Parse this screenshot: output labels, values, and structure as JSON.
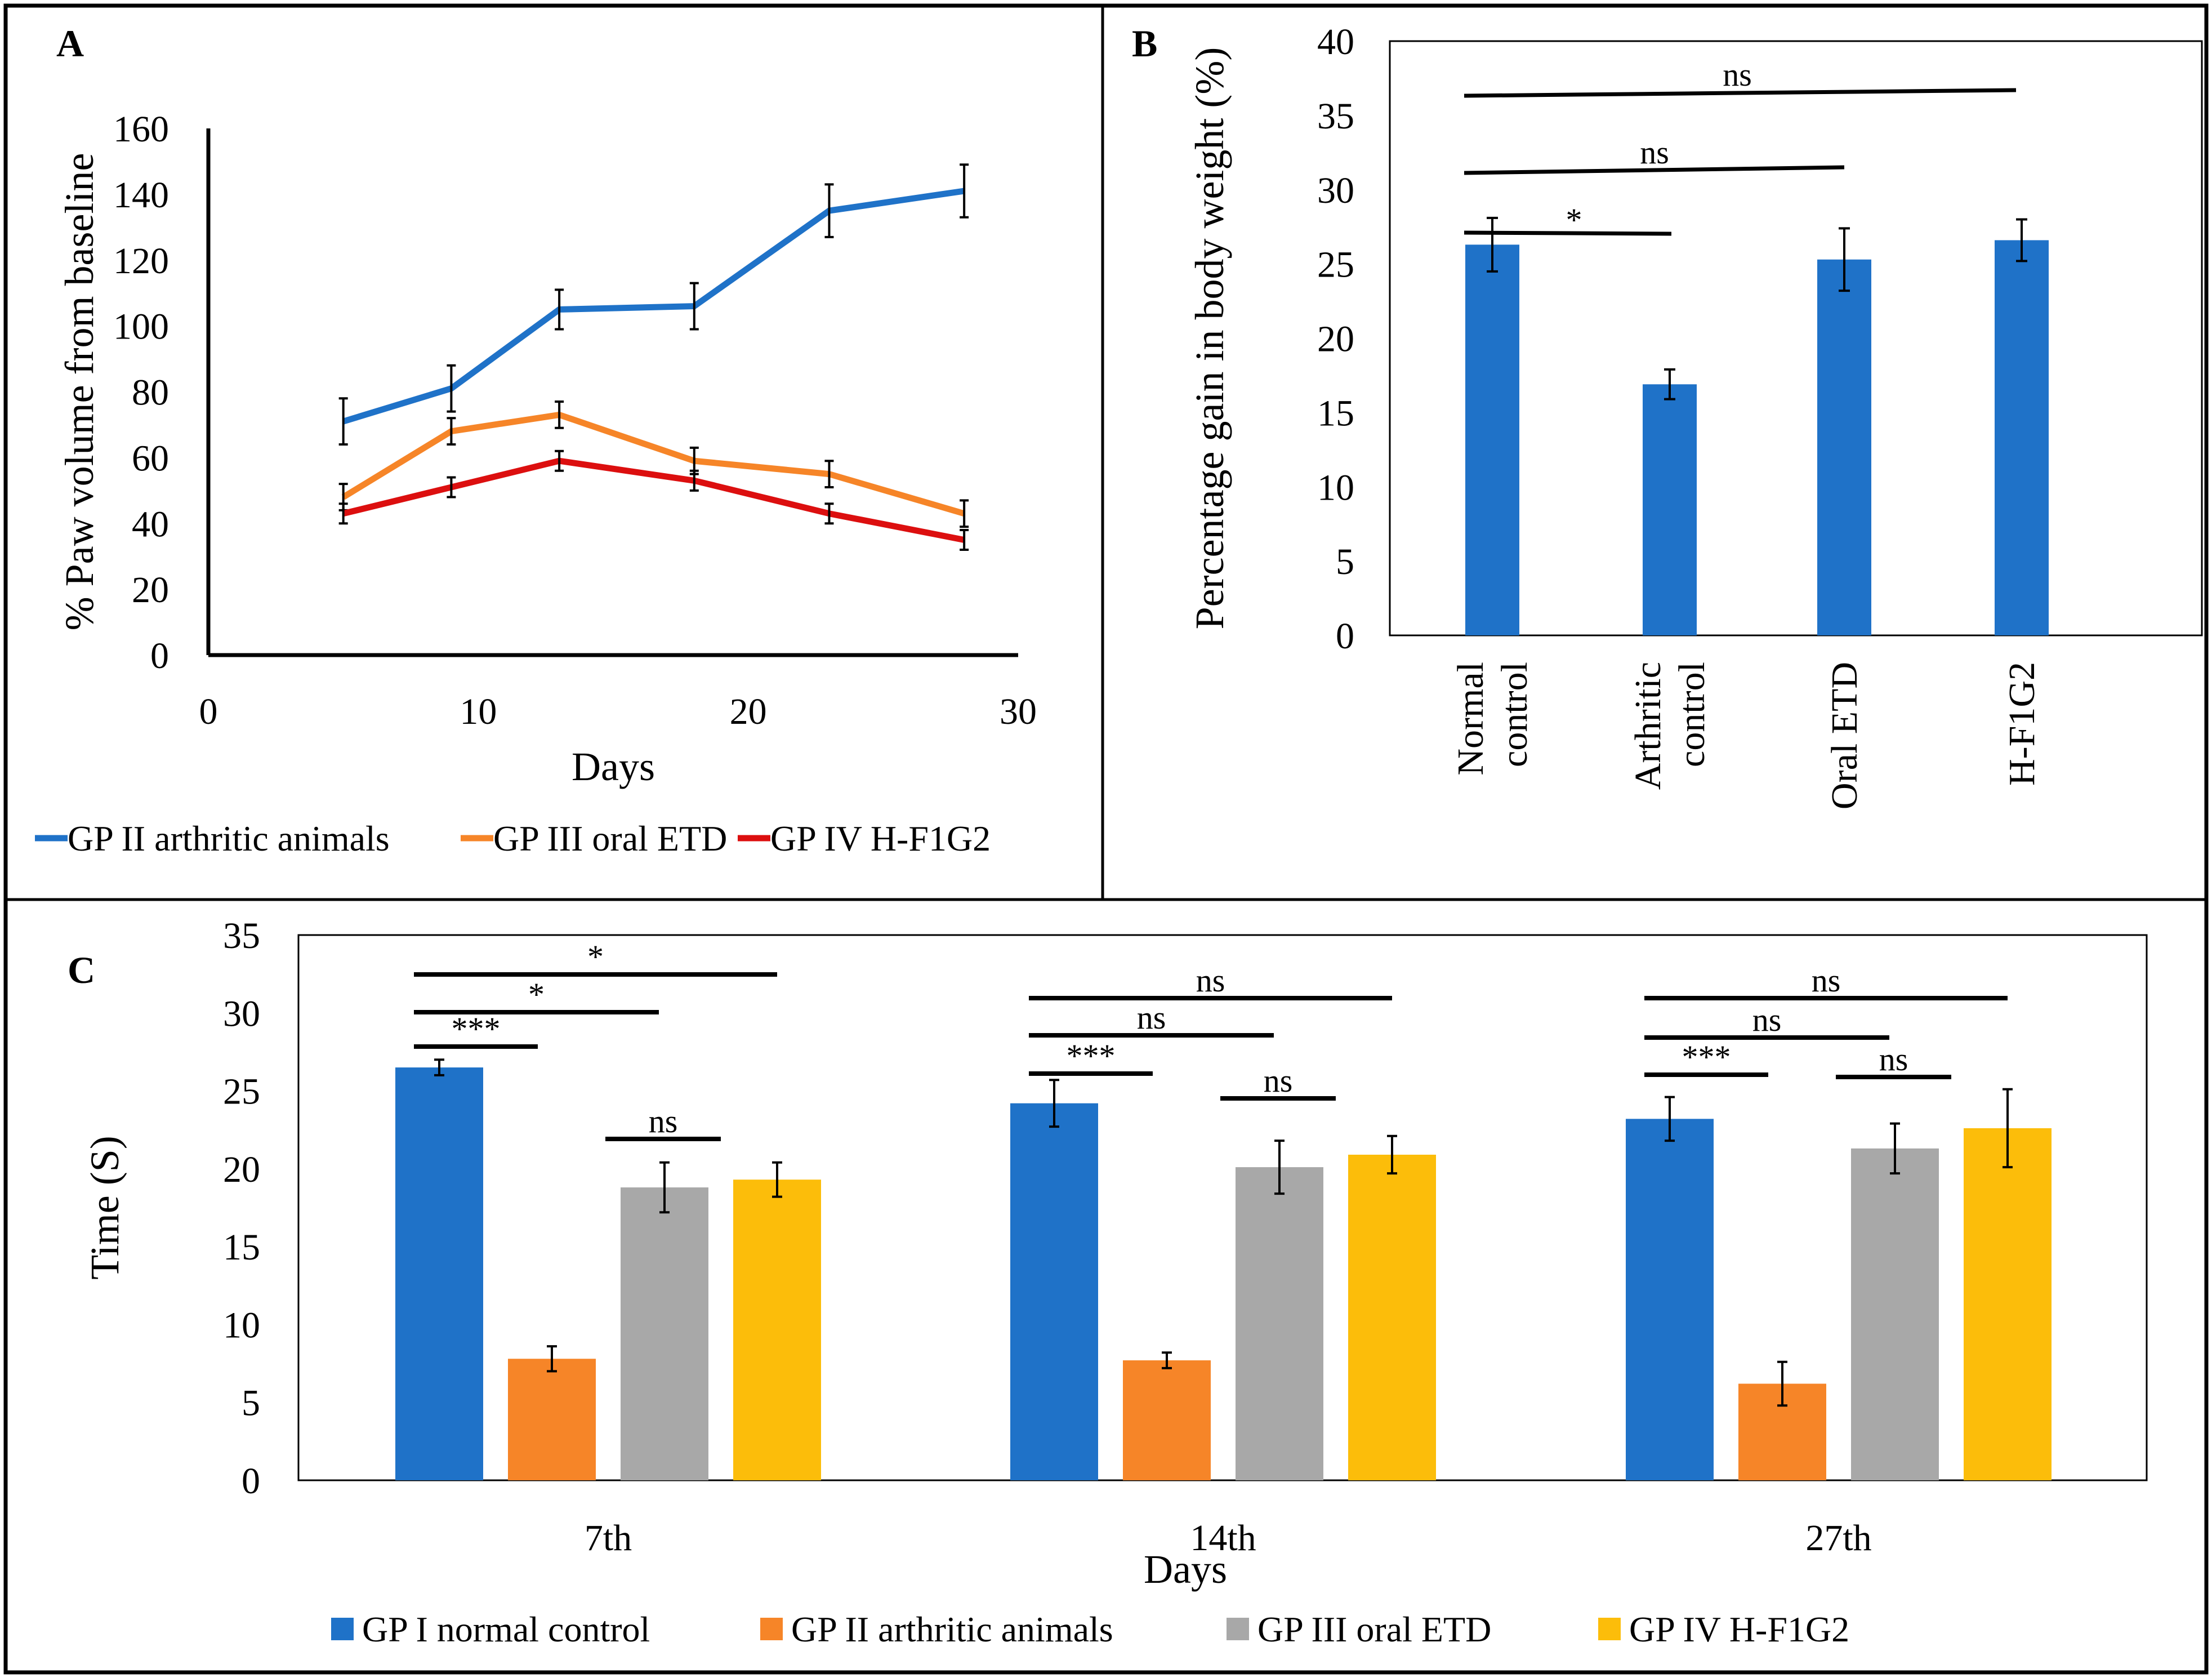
{
  "colors": {
    "blue": "#1f72c8",
    "orange": "#f68528",
    "red": "#dc0f0f",
    "gray": "#a8a8a8",
    "yellow": "#fcbd0a",
    "black": "#000000"
  },
  "chart_data": [
    {
      "panel": "A",
      "type": "line",
      "xlabel": "Days",
      "ylabel": "% Paw volume from baseline",
      "xlim": [
        0,
        30
      ],
      "ylim": [
        0,
        160
      ],
      "xticks": [
        0,
        10,
        20,
        30
      ],
      "yticks": [
        0,
        20,
        40,
        60,
        80,
        100,
        120,
        140,
        160
      ],
      "grid": false,
      "legend": "bottom",
      "series": [
        {
          "name": "GP II arthritic animals",
          "color": "#1f72c8",
          "x": [
            5,
            9,
            13,
            18,
            23,
            28
          ],
          "y": [
            71,
            81,
            105,
            106,
            135,
            141
          ],
          "err": [
            7,
            7,
            6,
            7,
            8,
            8
          ]
        },
        {
          "name": "GP III oral ETD",
          "color": "#f68528",
          "x": [
            5,
            9,
            13,
            18,
            23,
            28
          ],
          "y": [
            48,
            68,
            73,
            59,
            55,
            43
          ],
          "err": [
            4,
            4,
            4,
            4,
            4,
            4
          ]
        },
        {
          "name": "GP IV H-F1G2",
          "color": "#dc0f0f",
          "x": [
            5,
            9,
            13,
            18,
            23,
            28
          ],
          "y": [
            43,
            51,
            59,
            53,
            43,
            35
          ],
          "err": [
            3,
            3,
            3,
            3,
            3,
            3
          ]
        }
      ]
    },
    {
      "panel": "B",
      "type": "bar",
      "ylabel": "Percentage gain in body weight (%)",
      "ylim": [
        0,
        40
      ],
      "yticks": [
        0,
        5,
        10,
        15,
        20,
        25,
        30,
        35,
        40
      ],
      "grid": false,
      "categories": [
        [
          "Normal",
          "control"
        ],
        [
          "Arthritic",
          "control"
        ],
        [
          "Oral ETD"
        ],
        [
          "H-F1G2"
        ]
      ],
      "values": [
        26.3,
        16.9,
        25.3,
        26.6
      ],
      "err": [
        1.8,
        1.0,
        2.1,
        1.4
      ],
      "color": "#1f72c8",
      "significance": [
        {
          "label": "*",
          "from": 0,
          "to": 1
        },
        {
          "label": "ns",
          "from": 0,
          "to": 2
        },
        {
          "label": "ns",
          "from": 0,
          "to": 3
        }
      ]
    },
    {
      "panel": "C",
      "type": "bar",
      "xlabel": "Days",
      "ylabel": "Time (S)",
      "ylim": [
        0,
        35
      ],
      "yticks": [
        0,
        5,
        10,
        15,
        20,
        25,
        30,
        35
      ],
      "grid": false,
      "legend": "bottom",
      "categories": [
        "7th",
        "14th",
        "27th"
      ],
      "series": [
        {
          "name": "GP I normal control",
          "color": "#1f72c8",
          "values": [
            26.5,
            24.2,
            23.2
          ],
          "err": [
            0.5,
            1.5,
            1.4
          ]
        },
        {
          "name": "GP II arthritic animals",
          "color": "#f68528",
          "values": [
            7.8,
            7.7,
            6.2
          ],
          "err": [
            0.8,
            0.5,
            1.4
          ]
        },
        {
          "name": "GP III oral ETD",
          "color": "#a8a8a8",
          "values": [
            18.8,
            20.1,
            21.3
          ],
          "err": [
            1.6,
            1.7,
            1.6
          ]
        },
        {
          "name": "GP IV H-F1G2",
          "color": "#fcbd0a",
          "values": [
            19.3,
            20.9,
            22.6
          ],
          "err": [
            1.1,
            1.2,
            2.5
          ]
        }
      ],
      "significance": [
        {
          "group": 0,
          "label": "*",
          "from": 0,
          "to": 3
        },
        {
          "group": 0,
          "label": "*",
          "from": 0,
          "to": 2
        },
        {
          "group": 0,
          "label": "***",
          "from": 0,
          "to": 1
        },
        {
          "group": 0,
          "label": "ns",
          "from": 2,
          "to": 3
        },
        {
          "group": 1,
          "label": "ns",
          "from": 0,
          "to": 3
        },
        {
          "group": 1,
          "label": "ns",
          "from": 0,
          "to": 2
        },
        {
          "group": 1,
          "label": "***",
          "from": 0,
          "to": 1
        },
        {
          "group": 1,
          "label": "ns",
          "from": 2,
          "to": 3
        },
        {
          "group": 2,
          "label": "ns",
          "from": 0,
          "to": 3
        },
        {
          "group": 2,
          "label": "ns",
          "from": 0,
          "to": 2
        },
        {
          "group": 2,
          "label": "***",
          "from": 0,
          "to": 1
        },
        {
          "group": 2,
          "label": "ns",
          "from": 2,
          "to": 3
        }
      ]
    }
  ]
}
